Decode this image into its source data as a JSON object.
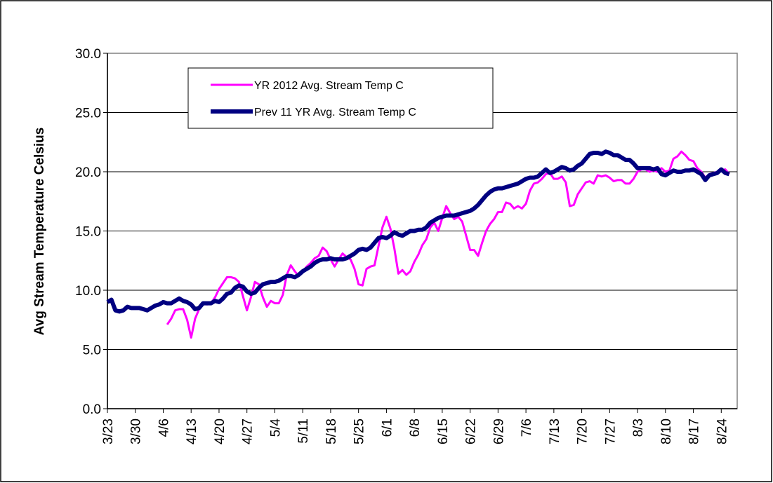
{
  "chart_data": {
    "type": "line",
    "ylabel": "Avg Stream Temperature Celsius",
    "categories": [
      "3/23",
      null,
      null,
      null,
      null,
      null,
      null,
      "3/30",
      null,
      null,
      null,
      null,
      null,
      null,
      "4/6",
      null,
      null,
      null,
      null,
      null,
      null,
      "4/13",
      null,
      null,
      null,
      null,
      null,
      null,
      "4/20",
      null,
      null,
      null,
      null,
      null,
      null,
      "4/27",
      null,
      null,
      null,
      null,
      null,
      null,
      "5/4",
      null,
      null,
      null,
      null,
      null,
      null,
      "5/11",
      null,
      null,
      null,
      null,
      null,
      null,
      "5/18",
      null,
      null,
      null,
      null,
      null,
      null,
      "5/25",
      null,
      null,
      null,
      null,
      null,
      null,
      "6/1",
      null,
      null,
      null,
      null,
      null,
      null,
      "6/8",
      null,
      null,
      null,
      null,
      null,
      null,
      "6/15",
      null,
      null,
      null,
      null,
      null,
      null,
      "6/22",
      null,
      null,
      null,
      null,
      null,
      null,
      "6/29",
      null,
      null,
      null,
      null,
      null,
      null,
      "7/6",
      null,
      null,
      null,
      null,
      null,
      null,
      "7/13",
      null,
      null,
      null,
      null,
      null,
      null,
      "7/20",
      null,
      null,
      null,
      null,
      null,
      null,
      "7/27",
      null,
      null,
      null,
      null,
      null,
      null,
      "8/3",
      null,
      null,
      null,
      null,
      null,
      null,
      "8/10",
      null,
      null,
      null,
      null,
      null,
      null,
      "8/17",
      null,
      null,
      null,
      null,
      null,
      null,
      "8/24",
      null,
      null
    ],
    "series": [
      {
        "name": "YR 2012 Avg. Stream Temp C",
        "color": "#ff00ff",
        "width": 3,
        "values": [
          null,
          null,
          null,
          null,
          null,
          null,
          null,
          null,
          null,
          null,
          null,
          null,
          null,
          null,
          null,
          7.1,
          7.6,
          8.3,
          8.4,
          8.4,
          7.5,
          6.0,
          7.6,
          8.4,
          8.9,
          8.8,
          8.9,
          9.4,
          10.1,
          10.6,
          11.1,
          11.1,
          11.0,
          10.7,
          9.5,
          8.3,
          9.4,
          10.7,
          10.5,
          9.4,
          8.6,
          9.1,
          8.9,
          8.9,
          9.6,
          11.3,
          12.1,
          11.6,
          11.2,
          11.6,
          12.0,
          12.3,
          12.7,
          12.9,
          13.6,
          13.3,
          12.6,
          12.0,
          12.6,
          13.1,
          12.8,
          12.6,
          11.8,
          10.5,
          10.4,
          11.8,
          12.0,
          12.1,
          13.7,
          15.3,
          16.2,
          15.2,
          13.5,
          11.4,
          11.7,
          11.3,
          11.6,
          12.4,
          13.0,
          13.8,
          14.3,
          15.3,
          15.7,
          15.0,
          16.1,
          17.1,
          16.5,
          16.0,
          16.2,
          15.8,
          14.6,
          13.4,
          13.4,
          12.9,
          14.0,
          15.0,
          15.6,
          16.0,
          16.6,
          16.6,
          17.4,
          17.3,
          16.9,
          17.1,
          16.9,
          17.3,
          18.4,
          19.0,
          19.1,
          19.4,
          19.8,
          19.9,
          19.4,
          19.4,
          19.6,
          19.1,
          17.1,
          17.2,
          18.1,
          18.6,
          19.1,
          19.2,
          19.0,
          19.7,
          19.6,
          19.7,
          19.5,
          19.2,
          19.3,
          19.3,
          19.0,
          19.0,
          19.4,
          20.0,
          20.2,
          20.2,
          20.0,
          20.1,
          20.0,
          20.3,
          20.0,
          20.1,
          21.1,
          21.3,
          21.7,
          21.4,
          21.0,
          20.9,
          20.3,
          20.0,
          19.5,
          19.8,
          19.9,
          20.0,
          20.1,
          20.2,
          19.8
        ]
      },
      {
        "name": "Prev 11 YR Avg. Stream Temp C",
        "color": "#000080",
        "width": 6,
        "values": [
          9.0,
          9.2,
          8.3,
          8.2,
          8.3,
          8.6,
          8.5,
          8.5,
          8.5,
          8.4,
          8.3,
          8.5,
          8.7,
          8.8,
          9.0,
          8.9,
          8.9,
          9.1,
          9.3,
          9.1,
          9.0,
          8.8,
          8.4,
          8.5,
          8.9,
          8.9,
          8.9,
          9.1,
          9.0,
          9.3,
          9.7,
          9.8,
          10.2,
          10.4,
          10.3,
          9.9,
          9.7,
          9.8,
          10.2,
          10.5,
          10.6,
          10.7,
          10.7,
          10.8,
          11.0,
          11.2,
          11.2,
          11.1,
          11.3,
          11.6,
          11.8,
          12.0,
          12.3,
          12.5,
          12.6,
          12.6,
          12.7,
          12.6,
          12.6,
          12.6,
          12.7,
          12.9,
          13.1,
          13.4,
          13.5,
          13.4,
          13.6,
          14.0,
          14.4,
          14.5,
          14.4,
          14.6,
          14.9,
          14.7,
          14.6,
          14.8,
          15.0,
          15.0,
          15.1,
          15.1,
          15.3,
          15.7,
          15.9,
          16.1,
          16.2,
          16.3,
          16.3,
          16.3,
          16.4,
          16.5,
          16.6,
          16.7,
          16.9,
          17.2,
          17.6,
          18.0,
          18.3,
          18.5,
          18.6,
          18.6,
          18.7,
          18.8,
          18.9,
          19.0,
          19.2,
          19.4,
          19.5,
          19.5,
          19.6,
          19.9,
          20.2,
          19.9,
          20.0,
          20.2,
          20.4,
          20.3,
          20.1,
          20.2,
          20.5,
          20.7,
          21.1,
          21.5,
          21.6,
          21.6,
          21.5,
          21.7,
          21.6,
          21.4,
          21.4,
          21.2,
          21.0,
          21.0,
          20.7,
          20.3,
          20.3,
          20.3,
          20.3,
          20.2,
          20.3,
          19.8,
          19.7,
          19.9,
          20.1,
          20.0,
          20.0,
          20.1,
          20.1,
          20.2,
          20.0,
          19.8,
          19.3,
          19.7,
          19.8,
          19.9,
          20.2,
          19.9,
          19.8
        ]
      }
    ],
    "ylim": [
      0,
      30
    ],
    "yticks": [
      {
        "value": 0,
        "label": "0.0"
      },
      {
        "value": 5,
        "label": "5.0"
      },
      {
        "value": 10,
        "label": "10.0"
      },
      {
        "value": 15,
        "label": "15.0"
      },
      {
        "value": 20,
        "label": "20.0"
      },
      {
        "value": 25,
        "label": "25.0"
      },
      {
        "value": 30,
        "label": "30.0"
      }
    ],
    "grid": true,
    "legend": "top-left"
  }
}
